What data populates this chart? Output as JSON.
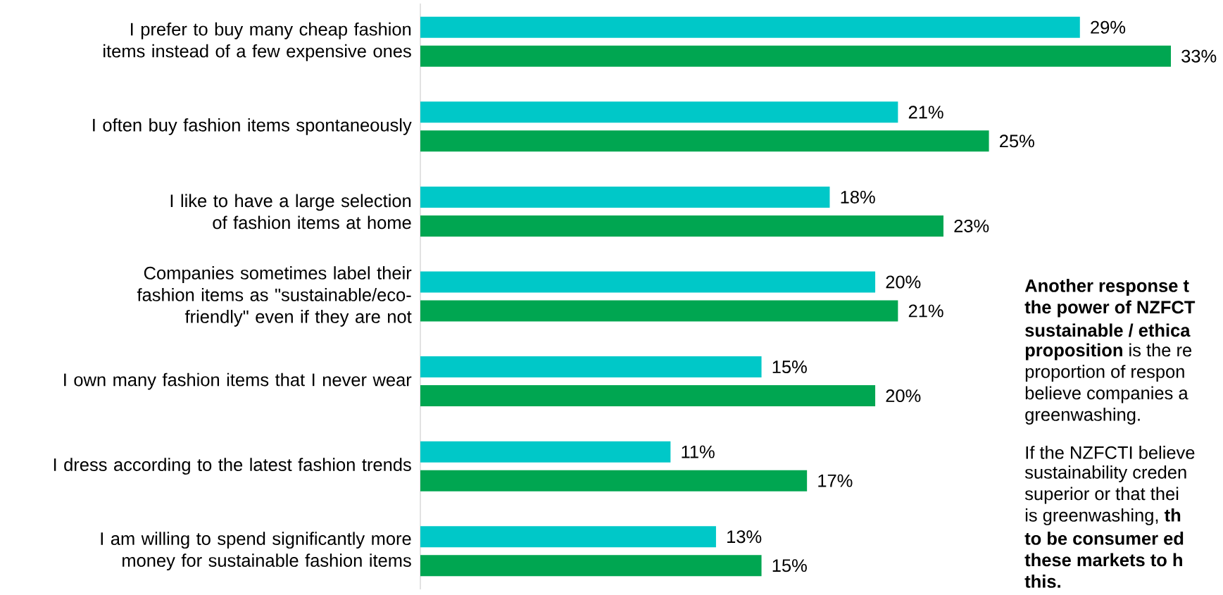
{
  "chart_data": {
    "type": "bar",
    "orientation": "horizontal",
    "categories": [
      "I prefer to buy many cheap fashion items instead of a few expensive ones",
      "I often buy fashion items spontaneously",
      "I like to have a large selection of fashion items at home",
      "Companies sometimes label their fashion items as \"sustainable/eco-friendly\" even if they are not",
      "I own many fashion items that I never wear",
      "I dress according to the latest fashion trends",
      "I am willing to spend significantly more money for sustainable fashion items"
    ],
    "series": [
      {
        "color": "#00c8c8",
        "values": [
          29,
          21,
          18,
          20,
          15,
          11,
          13
        ],
        "value_labels": [
          "29%",
          "21%",
          "18%",
          "20%",
          "15%",
          "11%",
          "13%"
        ]
      },
      {
        "color": "#00a651",
        "values": [
          33,
          25,
          23,
          21,
          20,
          17,
          15
        ],
        "value_labels": [
          "33%",
          "25%",
          "23%",
          "21%",
          "20%",
          "17%",
          "15%"
        ]
      }
    ],
    "xlim": [
      0,
      33
    ],
    "tick_labels": "y",
    "annotations": [
      "**Another response t**",
      "**the power of NZFCT**",
      "**sustainable / ethica**",
      "**proposition** is the re",
      "proportion of respon",
      "believe companies a",
      "greenwashing.",
      "If the NZFCTI believe",
      "sustainability creden",
      "superior or that thei",
      "is greenwashing, **th**",
      "**to be consumer ed**",
      "**these markets to h**",
      "**this.**"
    ]
  }
}
